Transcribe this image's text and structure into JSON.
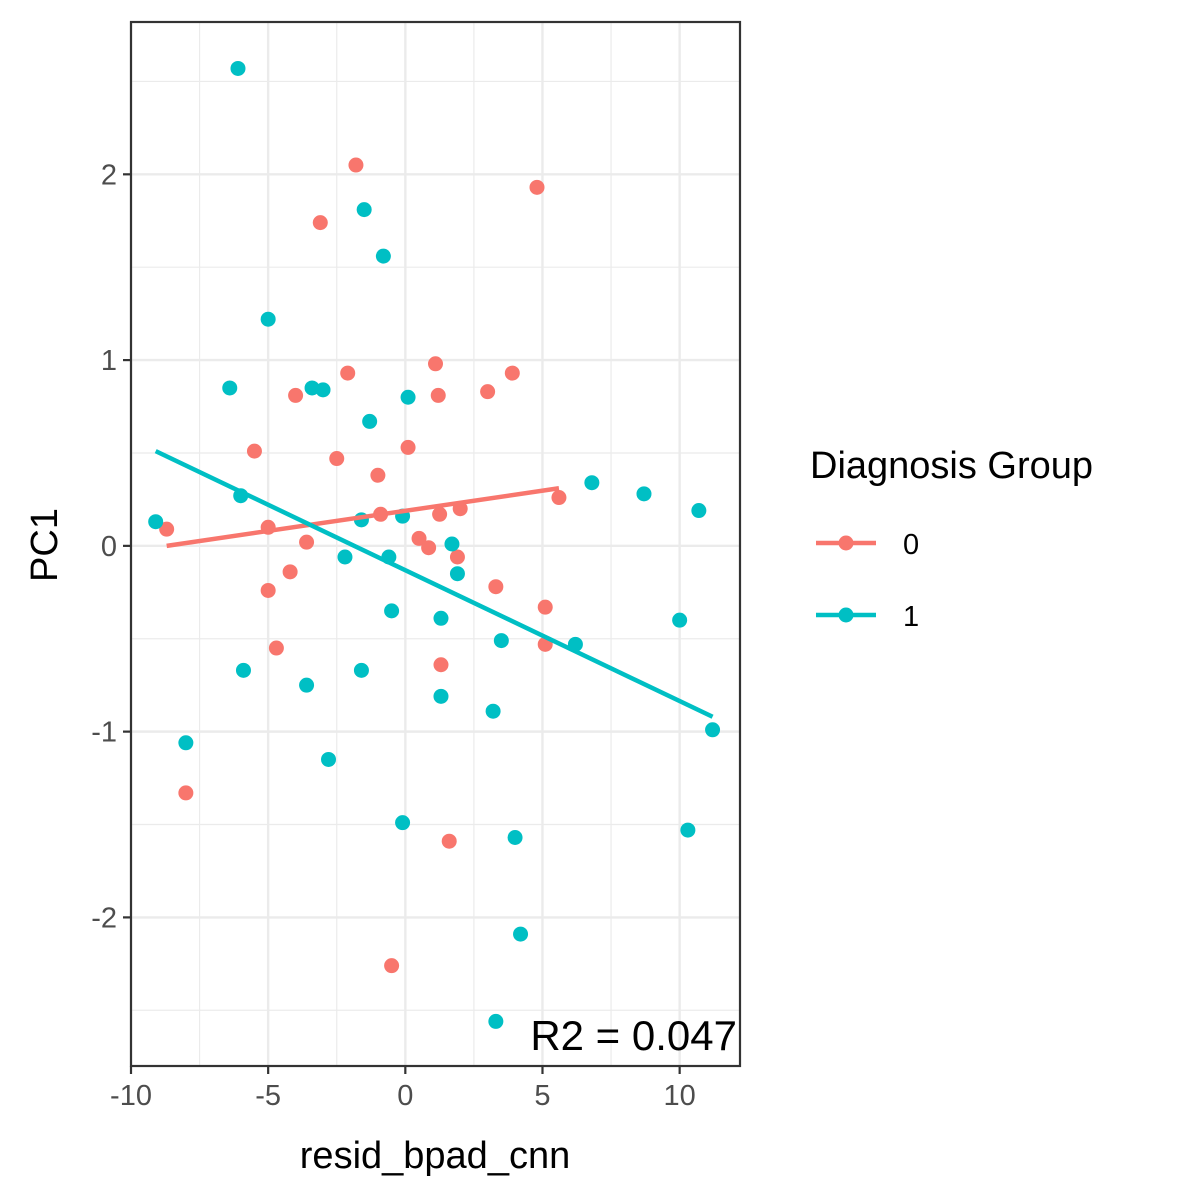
{
  "chart_data": {
    "type": "scatter",
    "xlabel": "resid_bpad_cnn",
    "ylabel": "PC1",
    "xlim": [
      -10,
      12.2
    ],
    "ylim": [
      -2.8,
      2.82
    ],
    "x_ticks": [
      -10,
      -5,
      0,
      5,
      10
    ],
    "y_ticks": [
      -2,
      -1,
      0,
      1,
      2
    ],
    "x_tick_labels": [
      "-10",
      "-5",
      "0",
      "5",
      "10"
    ],
    "y_tick_labels": [
      "-2",
      "-1",
      "0",
      "1",
      "2"
    ],
    "grid": true,
    "legend": {
      "title": "Diagnosis Group",
      "placement": "right"
    },
    "annotation": "R2 = 0.047",
    "series": [
      {
        "name": "0",
        "color": "#F8766D",
        "points": [
          [
            -1.8,
            2.05
          ],
          [
            4.8,
            1.93
          ],
          [
            -3.1,
            1.74
          ],
          [
            1.1,
            0.98
          ],
          [
            -2.1,
            0.93
          ],
          [
            3.9,
            0.93
          ],
          [
            3.0,
            0.83
          ],
          [
            -4.0,
            0.81
          ],
          [
            1.2,
            0.81
          ],
          [
            -5.5,
            0.51
          ],
          [
            0.1,
            0.53
          ],
          [
            -2.5,
            0.47
          ],
          [
            -1.0,
            0.38
          ],
          [
            5.6,
            0.26
          ],
          [
            2.0,
            0.2
          ],
          [
            -0.9,
            0.17
          ],
          [
            1.25,
            0.17
          ],
          [
            -8.7,
            0.09
          ],
          [
            -5.0,
            0.1
          ],
          [
            -3.6,
            0.02
          ],
          [
            0.5,
            0.04
          ],
          [
            0.85,
            -0.01
          ],
          [
            1.9,
            -0.06
          ],
          [
            -4.2,
            -0.14
          ],
          [
            3.3,
            -0.22
          ],
          [
            -5.0,
            -0.24
          ],
          [
            5.1,
            -0.33
          ],
          [
            -4.7,
            -0.55
          ],
          [
            5.1,
            -0.53
          ],
          [
            1.3,
            -0.64
          ],
          [
            -8.0,
            -1.33
          ],
          [
            1.6,
            -1.59
          ],
          [
            -0.5,
            -2.26
          ]
        ],
        "trend": [
          [
            -8.7,
            0.0
          ],
          [
            5.6,
            0.31
          ]
        ]
      },
      {
        "name": "1",
        "color": "#00BFC4",
        "points": [
          [
            -6.1,
            2.57
          ],
          [
            -1.5,
            1.81
          ],
          [
            -0.8,
            1.56
          ],
          [
            -5.0,
            1.22
          ],
          [
            -6.4,
            0.85
          ],
          [
            -3.4,
            0.85
          ],
          [
            -3.0,
            0.84
          ],
          [
            0.1,
            0.8
          ],
          [
            -1.3,
            0.67
          ],
          [
            6.8,
            0.34
          ],
          [
            8.7,
            0.28
          ],
          [
            -6.0,
            0.27
          ],
          [
            10.7,
            0.19
          ],
          [
            -9.1,
            0.13
          ],
          [
            -1.6,
            0.14
          ],
          [
            -0.1,
            0.16
          ],
          [
            1.7,
            0.01
          ],
          [
            -2.2,
            -0.06
          ],
          [
            -0.6,
            -0.06
          ],
          [
            1.9,
            -0.15
          ],
          [
            -0.5,
            -0.35
          ],
          [
            1.3,
            -0.39
          ],
          [
            10.0,
            -0.4
          ],
          [
            3.5,
            -0.51
          ],
          [
            6.2,
            -0.53
          ],
          [
            -5.9,
            -0.67
          ],
          [
            -1.6,
            -0.67
          ],
          [
            -3.6,
            -0.75
          ],
          [
            1.3,
            -0.81
          ],
          [
            3.2,
            -0.89
          ],
          [
            11.2,
            -0.99
          ],
          [
            -8.0,
            -1.06
          ],
          [
            -2.8,
            -1.15
          ],
          [
            -0.1,
            -1.49
          ],
          [
            10.3,
            -1.53
          ],
          [
            4.0,
            -1.57
          ],
          [
            4.2,
            -2.09
          ],
          [
            3.3,
            -2.56
          ]
        ],
        "trend": [
          [
            -9.1,
            0.51
          ],
          [
            11.2,
            -0.92
          ]
        ]
      }
    ]
  }
}
